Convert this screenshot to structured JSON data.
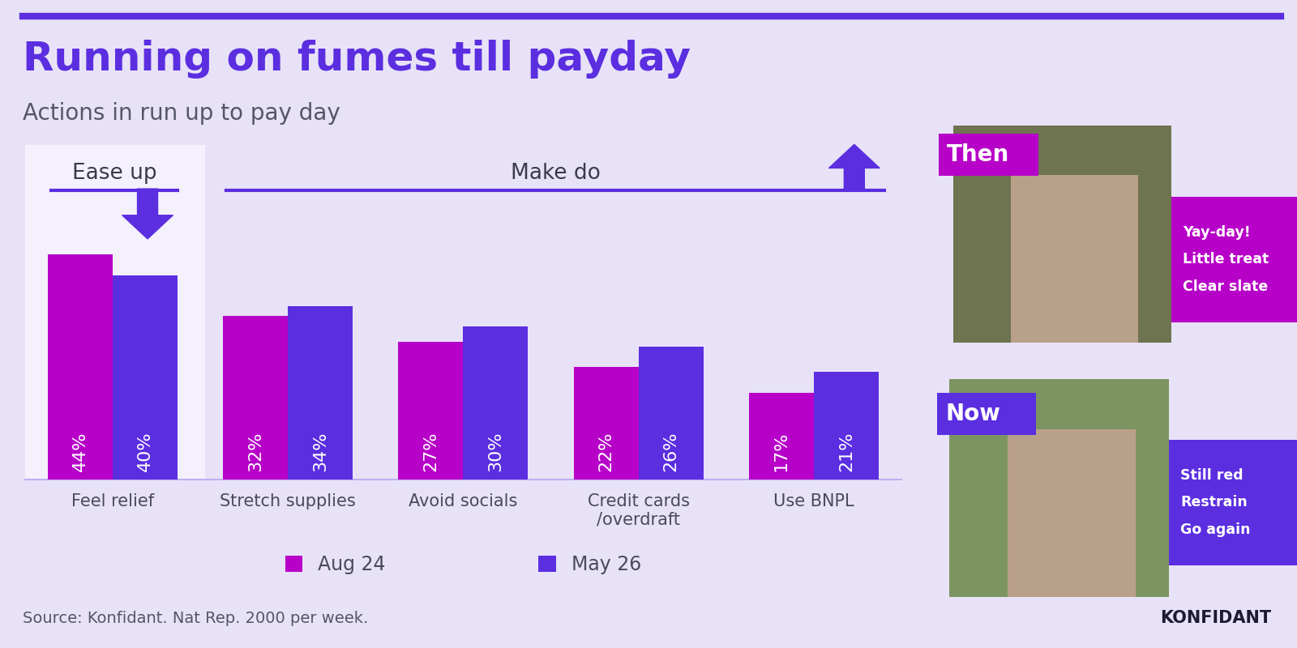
{
  "title": "Running on fumes till payday",
  "subtitle": "Actions in run up to pay day",
  "source": "Source: Konfidant. Nat Rep. 2000 per week.",
  "brand": "KONFIDANT",
  "chart_data": {
    "type": "bar",
    "categories": [
      "Feel relief",
      "Stretch supplies",
      "Avoid socials",
      "Credit cards\n/overdraft",
      "Use BNPL"
    ],
    "series": [
      {
        "name": "Aug 24",
        "color": "#B700C8",
        "values": [
          44,
          32,
          27,
          22,
          17
        ],
        "value_labels": [
          "44%",
          "32%",
          "27%",
          "22%",
          "17%"
        ]
      },
      {
        "name": "May 26",
        "color": "#5B2EE0",
        "values": [
          40,
          34,
          30,
          26,
          21
        ],
        "value_labels": [
          "40%",
          "34%",
          "30%",
          "26%",
          "21%"
        ]
      }
    ],
    "ylim": [
      0,
      62
    ],
    "tick_labels": "x",
    "data_labels": true,
    "legend": "lower center",
    "annotations": [
      {
        "text": "Ease up",
        "categories": [
          "Feel relief"
        ]
      },
      {
        "text": "Make do",
        "categories": [
          "Stretch supplies",
          "Avoid socials",
          "Credit cards\n/overdraft",
          "Use BNPL"
        ]
      }
    ]
  },
  "panels": [
    {
      "label": "Then",
      "color": "#B700C8",
      "lines": [
        "Yay-day!",
        "Little treat",
        "Clear slate"
      ]
    },
    {
      "label": "Now",
      "color": "#5B2EE0",
      "lines": [
        "Still red",
        "Restrain",
        "Go again"
      ]
    }
  ]
}
